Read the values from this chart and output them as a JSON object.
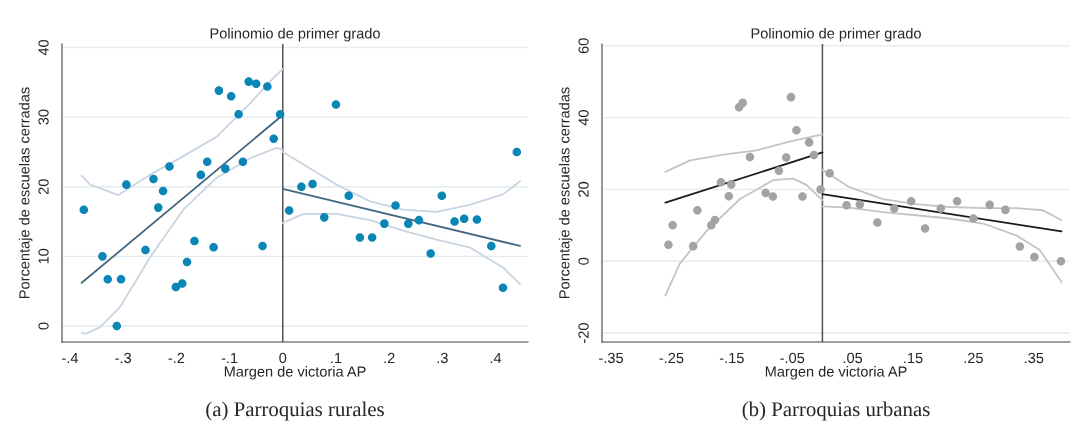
{
  "chart_data": [
    {
      "type": "scatter",
      "title": "Polinomio de primer grado",
      "xlabel": "Margen de victoria AP",
      "ylabel": "Porcentaje de escuelas cerradas",
      "annotations": [
        "(a) Parroquias rurales"
      ],
      "xlim": [
        -0.415,
        0.461
      ],
      "ylim": [
        -2.3,
        40.5
      ],
      "xticks": [
        {
          "value": -0.4,
          "label": "-.4"
        },
        {
          "value": -0.3,
          "label": "-.3"
        },
        {
          "value": -0.2,
          "label": "-.2"
        },
        {
          "value": -0.1,
          "label": "-.1"
        },
        0,
        {
          "value": 0.1,
          "label": ".1"
        },
        {
          "value": 0.2,
          "label": ".2"
        },
        {
          "value": 0.3,
          "label": ".3"
        },
        {
          "value": 0.4,
          "label": ".4"
        }
      ],
      "yticks": [
        0,
        10,
        20,
        30,
        40
      ],
      "grid": "y",
      "legend": false,
      "ref_lines": [
        {
          "axis": "x",
          "value": 0,
          "color": "#555555"
        }
      ],
      "series": [
        {
          "marker": "circle",
          "color": "#0a86b6",
          "x": [
            -0.374,
            -0.339,
            -0.329,
            -0.304,
            -0.312,
            -0.294,
            -0.258,
            -0.243,
            -0.234,
            -0.225,
            -0.213,
            -0.201,
            -0.189,
            -0.18,
            -0.166,
            -0.154,
            -0.142,
            -0.13,
            -0.12,
            -0.108,
            -0.097,
            -0.083,
            -0.075,
            -0.064,
            -0.05,
            -0.029,
            -0.038,
            -0.017,
            -0.005,
            0.012,
            0.035,
            0.056,
            0.078,
            0.1,
            0.124,
            0.145,
            0.168,
            0.191,
            0.212,
            0.236,
            0.256,
            0.278,
            0.299,
            0.323,
            0.341,
            0.365,
            0.392,
            0.414,
            0.44
          ],
          "values": [
            16.7,
            10.0,
            6.7,
            6.7,
            0,
            20.3,
            10.9,
            21.1,
            17.0,
            19.4,
            22.9,
            5.6,
            6.1,
            9.2,
            12.2,
            21.7,
            23.6,
            11.3,
            33.8,
            22.6,
            33.0,
            30.4,
            23.6,
            35.1,
            34.8,
            34.4,
            11.5,
            26.9,
            30.4,
            16.6,
            20.0,
            20.4,
            15.6,
            31.8,
            18.7,
            12.7,
            12.7,
            14.7,
            17.3,
            14.7,
            15.2,
            10.4,
            18.7,
            15.0,
            15.4,
            15.3,
            11.5,
            5.5,
            25.0
          ]
        },
        {
          "type": "line",
          "color": "#44687f",
          "x": [
            -0.378,
            0
          ],
          "values": [
            6.2,
            30.3
          ]
        },
        {
          "type": "line",
          "color": "#44687f",
          "x": [
            0,
            0.446
          ],
          "values": [
            19.7,
            11.5
          ]
        },
        {
          "type": "line",
          "color": "#c9d5e2",
          "x": [
            -0.378,
            -0.362,
            -0.309,
            -0.25,
            -0.187,
            -0.124,
            -0.061,
            -0.018,
            0
          ],
          "values": [
            21.6,
            20.3,
            18.8,
            21.7,
            24.4,
            27.2,
            32.0,
            35.6,
            36.9
          ]
        },
        {
          "type": "line",
          "color": "#c9d5e2",
          "x": [
            -0.378,
            -0.37,
            -0.344,
            -0.306,
            -0.25,
            -0.187,
            -0.124,
            -0.061,
            -0.011,
            0
          ],
          "values": [
            -1.0,
            -1.1,
            -0.2,
            2.7,
            9.8,
            16.7,
            21.3,
            24.1,
            25.6,
            25.3
          ]
        },
        {
          "type": "line",
          "color": "#c9d5e2",
          "x": [
            0,
            0.039,
            0.101,
            0.164,
            0.226,
            0.289,
            0.351,
            0.414,
            0.446
          ],
          "values": [
            25.0,
            23.2,
            20.3,
            17.9,
            16.7,
            16.4,
            17.4,
            18.9,
            20.8
          ]
        },
        {
          "type": "line",
          "color": "#c9d5e2",
          "x": [
            0,
            0.039,
            0.101,
            0.164,
            0.226,
            0.289,
            0.351,
            0.414,
            0.446
          ],
          "values": [
            14.8,
            16.1,
            16.1,
            15.2,
            13.7,
            12.4,
            11.3,
            8.4,
            6.0
          ]
        }
      ]
    },
    {
      "type": "scatter",
      "title": "Polinomio de primer grado",
      "xlabel": "Margen de victoria AP",
      "ylabel": "Porcentaje de escuelas cerradas",
      "annotations": [
        "(b) Parroquias urbanas"
      ],
      "xlim": [
        -0.365,
        0.41
      ],
      "ylim": [
        -22.5,
        60.5
      ],
      "xticks": [
        {
          "value": -0.35,
          "label": "-.35"
        },
        {
          "value": -0.25,
          "label": "-.25"
        },
        {
          "value": -0.15,
          "label": "-.15"
        },
        {
          "value": -0.05,
          "label": "-.05"
        },
        {
          "value": 0.05,
          "label": ".05"
        },
        {
          "value": 0.15,
          "label": ".15"
        },
        {
          "value": 0.25,
          "label": ".25"
        },
        {
          "value": 0.35,
          "label": ".35"
        }
      ],
      "yticks": [
        -20,
        0,
        20,
        40,
        60
      ],
      "grid": "y",
      "legend": false,
      "ref_lines": [
        {
          "axis": "x",
          "value": 0,
          "color": "#555555"
        }
      ],
      "series": [
        {
          "marker": "circle",
          "color": "#a3a3a3",
          "x": [
            -0.255,
            -0.248,
            -0.214,
            -0.207,
            -0.184,
            -0.178,
            -0.168,
            -0.155,
            -0.151,
            -0.138,
            -0.132,
            -0.12,
            -0.094,
            -0.082,
            -0.072,
            -0.06,
            -0.052,
            -0.043,
            -0.033,
            -0.022,
            -0.014,
            -0.003,
            0.012,
            0.04,
            0.062,
            0.091,
            0.119,
            0.147,
            0.17,
            0.196,
            0.223,
            0.25,
            0.277,
            0.303,
            0.327,
            0.351,
            0.395
          ],
          "values": [
            4.6,
            10.0,
            4.2,
            14.2,
            10.0,
            11.5,
            22.0,
            18.1,
            21.4,
            42.9,
            44.1,
            29.0,
            19.0,
            18.0,
            25.2,
            28.9,
            45.7,
            36.5,
            18.0,
            33.1,
            29.6,
            20.0,
            24.5,
            15.6,
            15.8,
            10.8,
            14.7,
            16.7,
            9.1,
            14.7,
            16.7,
            11.9,
            15.7,
            14.3,
            4.1,
            1.2,
            0
          ]
        },
        {
          "type": "line",
          "color": "#1a1a1a",
          "x": [
            -0.26,
            0
          ],
          "values": [
            16.3,
            30.3
          ]
        },
        {
          "type": "line",
          "color": "#1a1a1a",
          "x": [
            0,
            0.396
          ],
          "values": [
            18.7,
            8.3
          ]
        },
        {
          "type": "line",
          "color": "#c4c4c4",
          "x": [
            -0.26,
            -0.219,
            -0.164,
            -0.109,
            -0.053,
            0
          ],
          "values": [
            24.9,
            28.1,
            29.7,
            30.9,
            33.4,
            35.3
          ]
        },
        {
          "type": "line",
          "color": "#c4c4c4",
          "x": [
            -0.26,
            -0.236,
            -0.191,
            -0.136,
            -0.081,
            -0.048,
            -0.026,
            0
          ],
          "values": [
            -9.5,
            -0.6,
            8.6,
            17.4,
            22.6,
            23.0,
            21.2,
            17.0
          ]
        },
        {
          "type": "line",
          "color": "#c4c4c4",
          "x": [
            0,
            0.044,
            0.1,
            0.155,
            0.21,
            0.266,
            0.321,
            0.365,
            0.396
          ],
          "values": [
            25.5,
            20.7,
            17.3,
            15.9,
            15.1,
            14.8,
            14.8,
            14.2,
            11.4
          ]
        },
        {
          "type": "line",
          "color": "#c4c4c4",
          "x": [
            0,
            0.044,
            0.1,
            0.155,
            0.21,
            0.266,
            0.321,
            0.36,
            0.396
          ],
          "values": [
            15.3,
            14.9,
            13.7,
            12.8,
            11.9,
            10.5,
            7.2,
            3.1,
            -5.8
          ]
        }
      ]
    }
  ]
}
